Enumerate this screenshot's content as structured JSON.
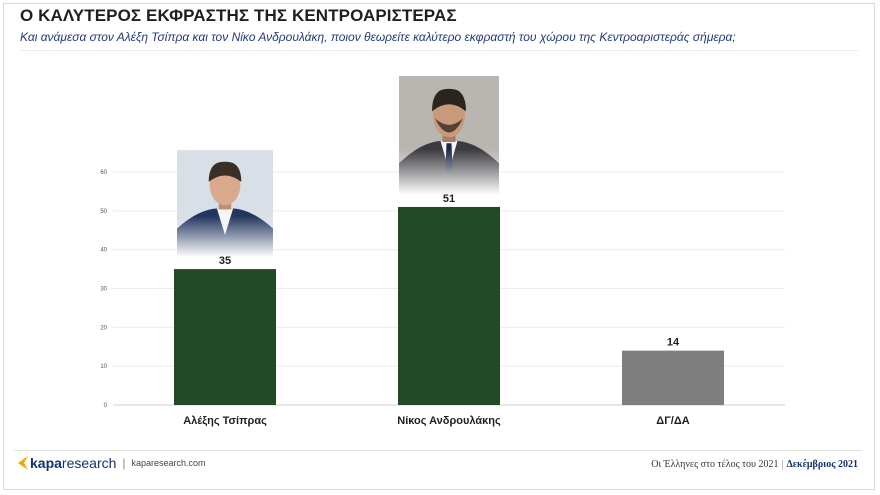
{
  "header": {
    "title": "Ο ΚΑΛΥΤΕΡΟΣ ΕΚΦΡΑΣΤΗΣ ΤΗΣ ΚΕΝΤΡΟΑΡΙΣΤΕΡΑΣ",
    "subtitle": "Και ανάμεσα στον Αλέξη Τσίπρα και τον Νίκο Ανδρουλάκη, ποιον θεωρείτε καλύτερο εκφραστή του χώρου της Κεντροαριστεράς σήμερα;"
  },
  "chart_data": {
    "type": "bar",
    "categories": [
      "Αλέξης Τσίπρας",
      "Νίκος Ανδρουλάκης",
      "ΔΓ/ΔΑ"
    ],
    "values": [
      35,
      51,
      14
    ],
    "value_labels": [
      "35",
      "51",
      "14"
    ],
    "ylim": [
      0,
      60
    ],
    "y_ticks": [
      "0",
      "10",
      "20",
      "30",
      "40",
      "50",
      "60"
    ],
    "colors": [
      "#234a27",
      "#234a27",
      "#7f7f7f"
    ],
    "grid": true,
    "legend": "none",
    "photos": [
      "Αλέξης Τσίπρας",
      "Νίκος Ανδρουλάκης"
    ]
  },
  "footer": {
    "brand_prefix": "kapa",
    "brand_suffix": "research",
    "separator": "|",
    "url": "kaparesearch.com",
    "survey_name": "Οι Έλληνες στο τέλος του 2021",
    "date": "Δεκέμβριος 2021",
    "brand_color": "#15306e",
    "accent_color": "#f2a900"
  }
}
